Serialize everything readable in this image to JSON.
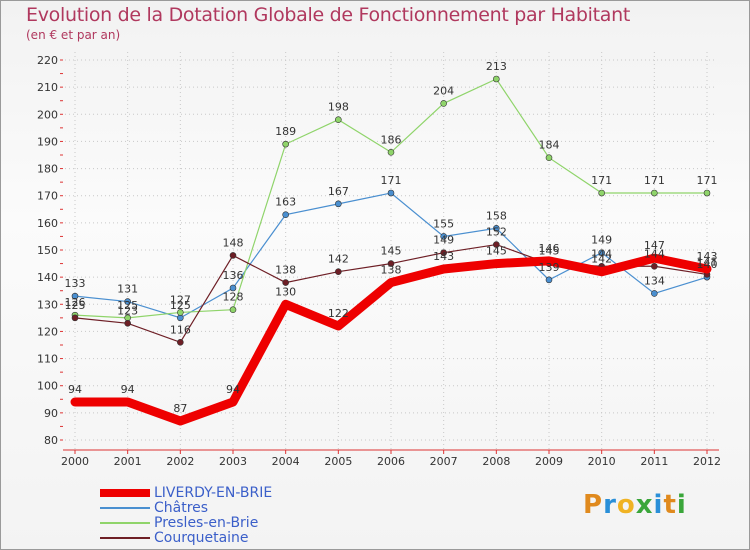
{
  "chart_data": {
    "type": "line",
    "title": "Evolution de la Dotation Globale de Fonctionnement par Habitant",
    "subtitle": "(en € et par an)",
    "xlabel": "",
    "ylabel": "",
    "ylim": [
      80,
      220
    ],
    "y_ticks": [
      "80",
      "90",
      "100",
      "110",
      "120",
      "130",
      "140",
      "150",
      "160",
      "170",
      "180",
      "190",
      "200",
      "210",
      "220"
    ],
    "categories": [
      "2000",
      "2001",
      "2002",
      "2003",
      "2004",
      "2005",
      "2006",
      "2007",
      "2008",
      "2009",
      "2010",
      "2011",
      "2012"
    ],
    "series": [
      {
        "name": "Châtres",
        "color": "#4a8fd0",
        "values": [
          133,
          131,
          125,
          136,
          163,
          167,
          171,
          155,
          158,
          139,
          149,
          134,
          140
        ]
      },
      {
        "name": "Presles-en-Brie",
        "color": "#8fd46a",
        "values": [
          126,
          125,
          127,
          128,
          189,
          198,
          186,
          204,
          213,
          184,
          171,
          171,
          171
        ]
      },
      {
        "name": "Courquetaine",
        "color": "#6e1f26",
        "values": [
          125,
          123,
          116,
          148,
          138,
          142,
          145,
          149,
          152,
          145,
          144,
          144,
          141
        ]
      },
      {
        "name": "LIVERDY-EN-BRIE",
        "color": "#ee0000",
        "values": [
          94,
          94,
          87,
          94,
          130,
          122,
          138,
          143,
          145,
          146,
          142,
          147,
          143
        ]
      }
    ],
    "legend": [
      "LIVERDY-EN-BRIE",
      "Châtres",
      "Presles-en-Brie",
      "Courquetaine"
    ],
    "legend_position": "bottom-left"
  },
  "logo": {
    "text": "Proxiti"
  }
}
